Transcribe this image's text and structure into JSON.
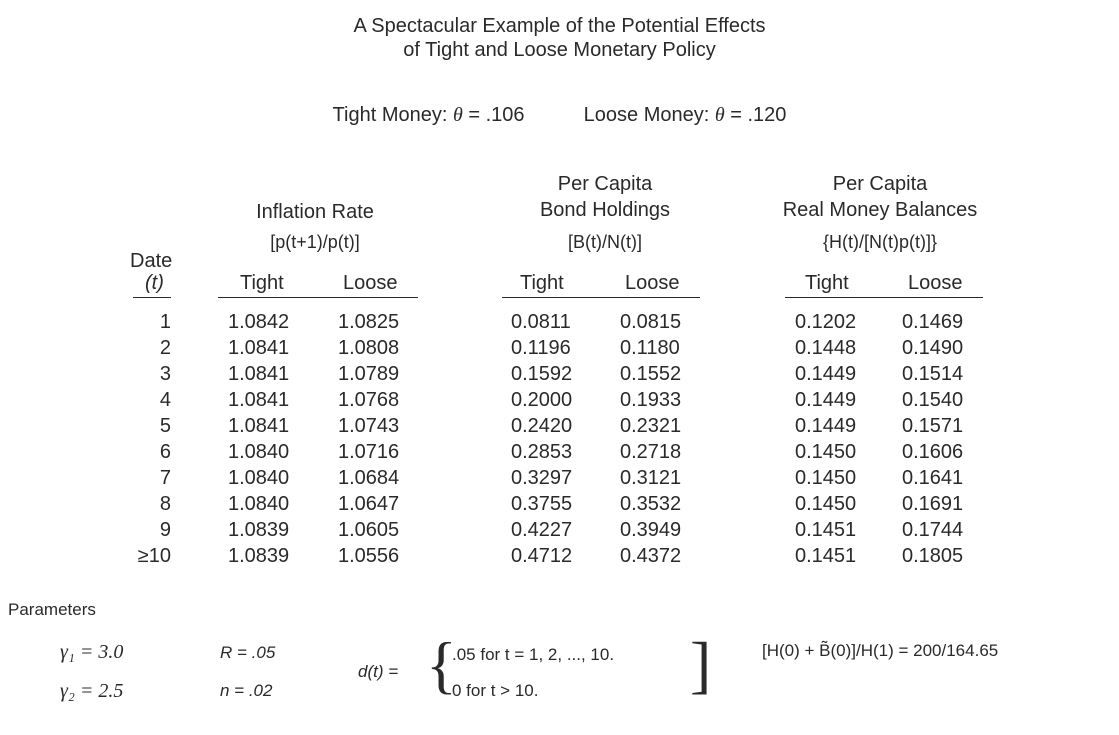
{
  "title": {
    "line1": "A Spectacular Example of the Potential Effects",
    "line2": "of Tight and Loose Monetary Policy"
  },
  "theta": {
    "tight_label": "Tight Money:",
    "tight_symbol": "θ",
    "tight_value": "= .106",
    "loose_label": "Loose Money:",
    "loose_symbol": "θ",
    "loose_value": "= .120"
  },
  "headers": {
    "date_label": "Date",
    "date_sub": "(t)",
    "inflation": {
      "title": "Inflation Rate",
      "formula": "[p(t+1)/p(t)]"
    },
    "bonds": {
      "title1": "Per Capita",
      "title2": "Bond Holdings",
      "formula": "[B(t)/N(t)]"
    },
    "money": {
      "title1": "Per Capita",
      "title2": "Real Money Balances",
      "formula": "{H(t)/[N(t)p(t)]}"
    },
    "tight": "Tight",
    "loose": "Loose"
  },
  "rows": [
    {
      "date": "1",
      "inf_t": "1.0842",
      "inf_l": "1.0825",
      "bond_t": "0.0811",
      "bond_l": "0.0815",
      "money_t": "0.1202",
      "money_l": "0.1469"
    },
    {
      "date": "2",
      "inf_t": "1.0841",
      "inf_l": "1.0808",
      "bond_t": "0.1196",
      "bond_l": "0.1180",
      "money_t": "0.1448",
      "money_l": "0.1490"
    },
    {
      "date": "3",
      "inf_t": "1.0841",
      "inf_l": "1.0789",
      "bond_t": "0.1592",
      "bond_l": "0.1552",
      "money_t": "0.1449",
      "money_l": "0.1514"
    },
    {
      "date": "4",
      "inf_t": "1.0841",
      "inf_l": "1.0768",
      "bond_t": "0.2000",
      "bond_l": "0.1933",
      "money_t": "0.1449",
      "money_l": "0.1540"
    },
    {
      "date": "5",
      "inf_t": "1.0841",
      "inf_l": "1.0743",
      "bond_t": "0.2420",
      "bond_l": "0.2321",
      "money_t": "0.1449",
      "money_l": "0.1571"
    },
    {
      "date": "6",
      "inf_t": "1.0840",
      "inf_l": "1.0716",
      "bond_t": "0.2853",
      "bond_l": "0.2718",
      "money_t": "0.1450",
      "money_l": "0.1606"
    },
    {
      "date": "7",
      "inf_t": "1.0840",
      "inf_l": "1.0684",
      "bond_t": "0.3297",
      "bond_l": "0.3121",
      "money_t": "0.1450",
      "money_l": "0.1641"
    },
    {
      "date": "8",
      "inf_t": "1.0840",
      "inf_l": "1.0647",
      "bond_t": "0.3755",
      "bond_l": "0.3532",
      "money_t": "0.1450",
      "money_l": "0.1691"
    },
    {
      "date": "9",
      "inf_t": "1.0839",
      "inf_l": "1.0605",
      "bond_t": "0.4227",
      "bond_l": "0.3949",
      "money_t": "0.1451",
      "money_l": "0.1744"
    },
    {
      "date": "≥10",
      "inf_t": "1.0839",
      "inf_l": "1.0556",
      "bond_t": "0.4712",
      "bond_l": "0.4372",
      "money_t": "0.1451",
      "money_l": "0.1805"
    }
  ],
  "parameters": {
    "label": "Parameters",
    "gamma1": "γ₁ = 3.0",
    "gamma2": "γ₂ = 2.5",
    "R": "R = .05",
    "n": "n = .02",
    "d_lhs": "d(t) =",
    "d_case1": ".05 for t = 1, 2, ..., 10.",
    "d_case2": "0 for t > 10.",
    "ratio": "[H(0) + B̃(0)]/H(1) = 200/164.65"
  }
}
